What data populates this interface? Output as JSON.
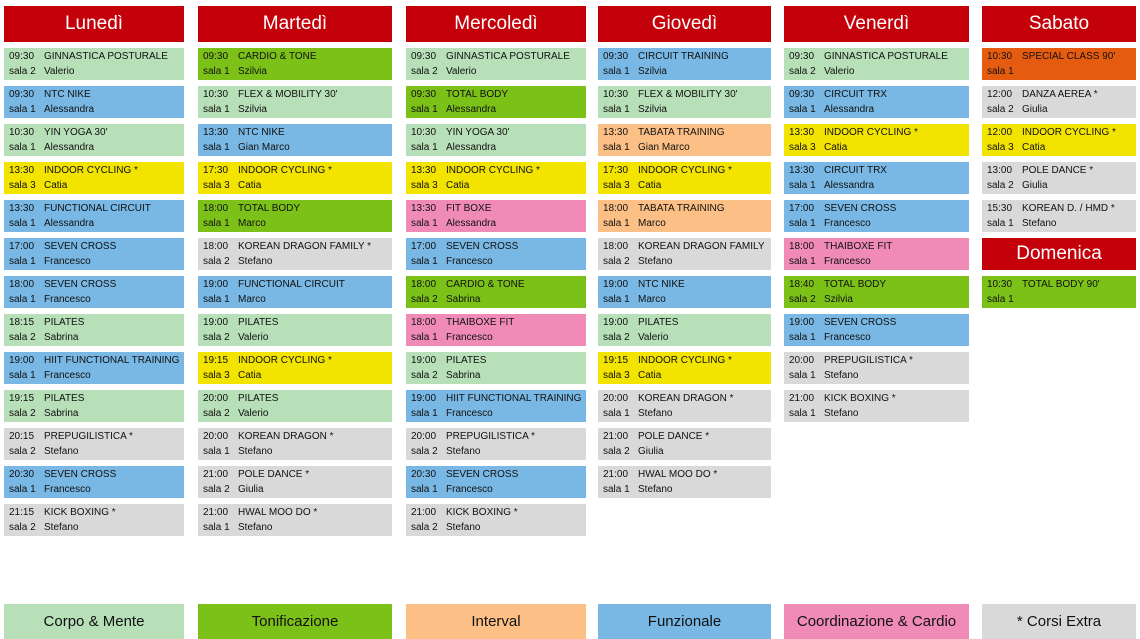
{
  "colors": {
    "corpo": "#b7dfb8",
    "tonif": "#7cc118",
    "interval": "#fcbf86",
    "funz": "#79b8e4",
    "coord": "#f08bb7",
    "extra": "#d9d9d9",
    "indoor": "#f3e400",
    "special": "#e55b10",
    "header": "#c4000a"
  },
  "days": [
    {
      "name": "Lunedì",
      "slots": [
        {
          "time": "09:30",
          "course": "GINNASTICA POSTURALE",
          "room": "sala 2",
          "trainer": "Valerio",
          "cat": "corpo"
        },
        {
          "time": "09:30",
          "course": "NTC NIKE",
          "room": "sala 1",
          "trainer": "Alessandra",
          "cat": "funz"
        },
        {
          "time": "10:30",
          "course": "YIN YOGA 30'",
          "room": "sala 1",
          "trainer": "Alessandra",
          "cat": "corpo"
        },
        {
          "time": "13:30",
          "course": "INDOOR CYCLING *",
          "room": "sala 3",
          "trainer": "Catia",
          "cat": "indoor"
        },
        {
          "time": "13:30",
          "course": "FUNCTIONAL CIRCUIT",
          "room": "sala 1",
          "trainer": "Alessandra",
          "cat": "funz"
        },
        {
          "time": "17:00",
          "course": "SEVEN CROSS",
          "room": "sala 1",
          "trainer": "Francesco",
          "cat": "funz"
        },
        {
          "time": "18:00",
          "course": "SEVEN CROSS",
          "room": "sala 1",
          "trainer": "Francesco",
          "cat": "funz"
        },
        {
          "time": "18:15",
          "course": "PILATES",
          "room": "sala 2",
          "trainer": "Sabrina",
          "cat": "corpo"
        },
        {
          "time": "19:00",
          "course": "HIIT FUNCTIONAL TRAINING",
          "room": "sala 1",
          "trainer": "Francesco",
          "cat": "funz"
        },
        {
          "time": "19:15",
          "course": "PILATES",
          "room": "sala 2",
          "trainer": "Sabrina",
          "cat": "corpo"
        },
        {
          "time": "20:15",
          "course": "PREPUGILISTICA *",
          "room": "sala 2",
          "trainer": "Stefano",
          "cat": "extra"
        },
        {
          "time": "20:30",
          "course": "SEVEN CROSS",
          "room": "sala 1",
          "trainer": "Francesco",
          "cat": "funz"
        },
        {
          "time": "21:15",
          "course": "KICK BOXING *",
          "room": "sala 2",
          "trainer": "Stefano",
          "cat": "extra"
        }
      ]
    },
    {
      "name": "Martedì",
      "slots": [
        {
          "time": "09:30",
          "course": "CARDIO & TONE",
          "room": "sala 1",
          "trainer": "Szilvia",
          "cat": "tonif"
        },
        {
          "time": "10:30",
          "course": "FLEX & MOBILITY 30'",
          "room": "sala 1",
          "trainer": "Szilvia",
          "cat": "corpo"
        },
        {
          "time": "13:30",
          "course": "NTC NIKE",
          "room": "sala 1",
          "trainer": "Gian Marco",
          "cat": "funz"
        },
        {
          "time": "17:30",
          "course": "INDOOR CYCLING *",
          "room": "sala 3",
          "trainer": "Catia",
          "cat": "indoor"
        },
        {
          "time": "18:00",
          "course": "TOTAL BODY",
          "room": "sala 1",
          "trainer": "Marco",
          "cat": "tonif"
        },
        {
          "time": "18:00",
          "course": "KOREAN DRAGON FAMILY *",
          "room": "sala 2",
          "trainer": "Stefano",
          "cat": "extra"
        },
        {
          "time": "19:00",
          "course": "FUNCTIONAL CIRCUIT",
          "room": "sala 1",
          "trainer": "Marco",
          "cat": "funz"
        },
        {
          "time": "19:00",
          "course": "PILATES",
          "room": "sala 2",
          "trainer": "Valerio",
          "cat": "corpo"
        },
        {
          "time": "19:15",
          "course": "INDOOR CYCLING *",
          "room": "sala 3",
          "trainer": "Catia",
          "cat": "indoor"
        },
        {
          "time": "20:00",
          "course": "PILATES",
          "room": "sala 2",
          "trainer": "Valerio",
          "cat": "corpo"
        },
        {
          "time": "20:00",
          "course": "KOREAN DRAGON *",
          "room": "sala 1",
          "trainer": "Stefano",
          "cat": "extra"
        },
        {
          "time": "21:00",
          "course": "POLE DANCE *",
          "room": "sala 2",
          "trainer": "Giulia",
          "cat": "extra"
        },
        {
          "time": "21:00",
          "course": "HWAL MOO DO *",
          "room": "sala 1",
          "trainer": "Stefano",
          "cat": "extra"
        }
      ]
    },
    {
      "name": "Mercoledì",
      "slots": [
        {
          "time": "09:30",
          "course": "GINNASTICA POSTURALE",
          "room": "sala 2",
          "trainer": "Valerio",
          "cat": "corpo"
        },
        {
          "time": "09:30",
          "course": "TOTAL BODY",
          "room": "sala 1",
          "trainer": "Alessandra",
          "cat": "tonif"
        },
        {
          "time": "10:30",
          "course": "YIN YOGA 30'",
          "room": "sala 1",
          "trainer": "Alessandra",
          "cat": "corpo"
        },
        {
          "time": "13:30",
          "course": "INDOOR CYCLING *",
          "room": "sala 3",
          "trainer": "Catia",
          "cat": "indoor"
        },
        {
          "time": "13:30",
          "course": "FIT BOXE",
          "room": "sala 1",
          "trainer": "Alessandra",
          "cat": "coord"
        },
        {
          "time": "17:00",
          "course": "SEVEN CROSS",
          "room": "sala 1",
          "trainer": "Francesco",
          "cat": "funz"
        },
        {
          "time": "18:00",
          "course": "CARDIO & TONE",
          "room": "sala 2",
          "trainer": "Sabrina",
          "cat": "tonif"
        },
        {
          "time": "18:00",
          "course": "THAIBOXE FIT",
          "room": "sala 1",
          "trainer": "Francesco",
          "cat": "coord"
        },
        {
          "time": "19:00",
          "course": "PILATES",
          "room": "sala 2",
          "trainer": "Sabrina",
          "cat": "corpo"
        },
        {
          "time": "19:00",
          "course": "HIIT FUNCTIONAL TRAINING",
          "room": "sala 1",
          "trainer": "Francesco",
          "cat": "funz"
        },
        {
          "time": "20:00",
          "course": "PREPUGILISTICA *",
          "room": "sala 2",
          "trainer": "Stefano",
          "cat": "extra"
        },
        {
          "time": "20:30",
          "course": "SEVEN CROSS",
          "room": "sala 1",
          "trainer": "Francesco",
          "cat": "funz"
        },
        {
          "time": "21:00",
          "course": "KICK BOXING *",
          "room": "sala 2",
          "trainer": "Stefano",
          "cat": "extra"
        }
      ]
    },
    {
      "name": "Giovedì",
      "slots": [
        {
          "time": "09:30",
          "course": "CIRCUIT TRAINING",
          "room": "sala 1",
          "trainer": "Szilvia",
          "cat": "funz"
        },
        {
          "time": "10:30",
          "course": "FLEX & MOBILITY 30'",
          "room": "sala 1",
          "trainer": "Szilvia",
          "cat": "corpo"
        },
        {
          "time": "13:30",
          "course": "TABATA TRAINING",
          "room": "sala 1",
          "trainer": "Gian Marco",
          "cat": "interval"
        },
        {
          "time": "17:30",
          "course": "INDOOR CYCLING *",
          "room": "sala 3",
          "trainer": "Catia",
          "cat": "indoor"
        },
        {
          "time": "18:00",
          "course": "TABATA TRAINING",
          "room": "sala 1",
          "trainer": "Marco",
          "cat": "interval"
        },
        {
          "time": "18:00",
          "course": "KOREAN DRAGON FAMILY *",
          "room": "sala 2",
          "trainer": "Stefano",
          "cat": "extra"
        },
        {
          "time": "19:00",
          "course": "NTC NIKE",
          "room": "sala 1",
          "trainer": "Marco",
          "cat": "funz"
        },
        {
          "time": "19:00",
          "course": "PILATES",
          "room": "sala 2",
          "trainer": "Valerio",
          "cat": "corpo"
        },
        {
          "time": "19:15",
          "course": "INDOOR CYCLING *",
          "room": "sala 3",
          "trainer": "Catia",
          "cat": "indoor"
        },
        {
          "time": "20:00",
          "course": "KOREAN DRAGON *",
          "room": "sala 1",
          "trainer": "Stefano",
          "cat": "extra"
        },
        {
          "time": "21:00",
          "course": "POLE DANCE *",
          "room": "sala 2",
          "trainer": "Giulia",
          "cat": "extra"
        },
        {
          "time": "21:00",
          "course": "HWAL MOO DO *",
          "room": "sala 1",
          "trainer": "Stefano",
          "cat": "extra"
        }
      ]
    },
    {
      "name": "Venerdì",
      "slots": [
        {
          "time": "09:30",
          "course": "GINNASTICA POSTURALE",
          "room": "sala 2",
          "trainer": "Valerio",
          "cat": "corpo"
        },
        {
          "time": "09:30",
          "course": "CIRCUIT TRX",
          "room": "sala 1",
          "trainer": "Alessandra",
          "cat": "funz"
        },
        {
          "time": "13:30",
          "course": "INDOOR CYCLING *",
          "room": "sala 3",
          "trainer": "Catia",
          "cat": "indoor"
        },
        {
          "time": "13:30",
          "course": "CIRCUIT TRX",
          "room": "sala 1",
          "trainer": "Alessandra",
          "cat": "funz"
        },
        {
          "time": "17:00",
          "course": "SEVEN CROSS",
          "room": "sala 1",
          "trainer": "Francesco",
          "cat": "funz"
        },
        {
          "time": "18:00",
          "course": "THAIBOXE FIT",
          "room": "sala 1",
          "trainer": "Francesco",
          "cat": "coord"
        },
        {
          "time": "18:40",
          "course": "TOTAL BODY",
          "room": "sala 2",
          "trainer": "Szilvia",
          "cat": "tonif"
        },
        {
          "time": "19:00",
          "course": "SEVEN CROSS",
          "room": "sala 1",
          "trainer": "Francesco",
          "cat": "funz"
        },
        {
          "time": "20:00",
          "course": "PREPUGILISTICA *",
          "room": "sala 1",
          "trainer": "Stefano",
          "cat": "extra"
        },
        {
          "time": "21:00",
          "course": "KICK BOXING *",
          "room": "sala 1",
          "trainer": "Stefano",
          "cat": "extra"
        }
      ]
    },
    {
      "name": "Sabato",
      "slots": [
        {
          "time": "10:30",
          "course": "SPECIAL CLASS 90'",
          "room": "sala 1",
          "trainer": "",
          "cat": "special"
        },
        {
          "time": "12:00",
          "course": "DANZA AEREA *",
          "room": "sala 2",
          "trainer": "Giulia",
          "cat": "extra"
        },
        {
          "time": "12:00",
          "course": "INDOOR CYCLING *",
          "room": "sala 3",
          "trainer": "Catia",
          "cat": "indoor"
        },
        {
          "time": "13:00",
          "course": "POLE DANCE *",
          "room": "sala 2",
          "trainer": "Giulia",
          "cat": "extra"
        },
        {
          "time": "15:30",
          "course": "KOREAN D. / HMD *",
          "room": "sala 1",
          "trainer": "Stefano",
          "cat": "extra"
        }
      ]
    }
  ],
  "sunday": {
    "name": "Domenica",
    "slots": [
      {
        "time": "10:30",
        "course": "TOTAL BODY 90'",
        "room": "sala 1",
        "trainer": "",
        "cat": "tonif"
      }
    ]
  },
  "legend": [
    {
      "label": "Corpo & Mente",
      "cat": "corpo"
    },
    {
      "label": "Tonificazione",
      "cat": "tonif"
    },
    {
      "label": "Interval",
      "cat": "interval"
    },
    {
      "label": "Funzionale",
      "cat": "funz"
    },
    {
      "label": "Coordinazione & Cardio",
      "cat": "coord"
    },
    {
      "label": "* Corsi Extra",
      "cat": "extra"
    }
  ]
}
